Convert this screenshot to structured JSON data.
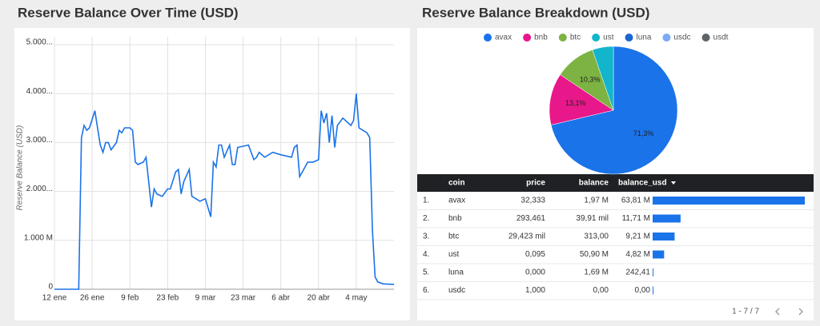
{
  "chart_data": [
    {
      "type": "line",
      "title": "Reserve Balance Over Time (USD)",
      "y_label": "Reserve Balance (USD)",
      "color": "#1a73e8",
      "grid": true,
      "x": [
        "01-12",
        "01-21",
        "01-22",
        "01-23",
        "01-24",
        "01-25",
        "01-27",
        "01-28",
        "01-29",
        "01-30",
        "01-31",
        "02-01",
        "02-02",
        "02-04",
        "02-05",
        "02-06",
        "02-07",
        "02-09",
        "02-10",
        "02-11",
        "02-12",
        "02-14",
        "02-15",
        "02-17",
        "02-18",
        "02-19",
        "02-21",
        "02-23",
        "02-24",
        "02-26",
        "02-27",
        "02-28",
        "03-01",
        "03-03",
        "03-04",
        "03-07",
        "03-09",
        "03-11",
        "03-12",
        "03-13",
        "03-14",
        "03-15",
        "03-16",
        "03-18",
        "03-19",
        "03-20",
        "03-21",
        "03-25",
        "03-27",
        "03-28",
        "03-29",
        "03-31",
        "04-03",
        "04-06",
        "04-10",
        "04-11",
        "04-12",
        "04-13",
        "04-16",
        "04-18",
        "04-20",
        "04-21",
        "04-22",
        "04-23",
        "04-24",
        "04-25",
        "04-26",
        "04-27",
        "04-29",
        "05-02",
        "05-03",
        "05-04",
        "05-05",
        "05-08",
        "05-09",
        "05-10",
        "05-11",
        "05-12",
        "05-14",
        "05-18"
      ],
      "values": [
        0,
        0,
        3100000000,
        3350000000,
        3250000000,
        3300000000,
        3650000000,
        3300000000,
        2950000000,
        2800000000,
        3000000000,
        3000000000,
        2850000000,
        3000000000,
        3250000000,
        3200000000,
        3300000000,
        3300000000,
        3250000000,
        2600000000,
        2550000000,
        2600000000,
        2700000000,
        1680000000,
        2050000000,
        1950000000,
        1900000000,
        2050000000,
        2050000000,
        2400000000,
        2450000000,
        1950000000,
        2200000000,
        2450000000,
        1900000000,
        1800000000,
        1850000000,
        1480000000,
        2600000000,
        2500000000,
        2950000000,
        2950000000,
        2700000000,
        2950000000,
        2550000000,
        2550000000,
        2900000000,
        2950000000,
        2650000000,
        2700000000,
        2800000000,
        2700000000,
        2800000000,
        2750000000,
        2700000000,
        2900000000,
        2950000000,
        2300000000,
        2600000000,
        2600000000,
        2650000000,
        3650000000,
        3400000000,
        3600000000,
        3000000000,
        3550000000,
        2900000000,
        3350000000,
        3500000000,
        3350000000,
        3450000000,
        4000000000,
        3300000000,
        3200000000,
        3100000000,
        1200000000,
        250000000,
        150000000,
        110000000,
        100000000
      ],
      "xlim": [
        "01-12",
        "05-18"
      ],
      "xticks": [
        {
          "value": "01-12",
          "label": "12 ene"
        },
        {
          "value": "01-26",
          "label": "26 ene"
        },
        {
          "value": "02-09",
          "label": "9 feb"
        },
        {
          "value": "02-23",
          "label": "23 feb"
        },
        {
          "value": "03-09",
          "label": "9 mar"
        },
        {
          "value": "03-23",
          "label": "23 mar"
        },
        {
          "value": "04-06",
          "label": "6 abr"
        },
        {
          "value": "04-20",
          "label": "20 abr"
        },
        {
          "value": "05-04",
          "label": "4 may"
        }
      ],
      "ylim": [
        0,
        5000000000
      ],
      "yticks": [
        0,
        {
          "value": 1000000000,
          "label": "1.000 M"
        },
        {
          "value": 2000000000,
          "label": "2.000..."
        },
        {
          "value": 3000000000,
          "label": "3.000..."
        },
        {
          "value": 4000000000,
          "label": "4.000..."
        },
        {
          "value": 5000000000,
          "label": "5.000..."
        }
      ]
    },
    {
      "type": "pie",
      "title": "Reserve Balance Breakdown (USD)",
      "categories": [
        "avax",
        "bnb",
        "btc",
        "ust",
        "luna",
        "usdc",
        "usdt"
      ],
      "values": [
        71.3,
        13.1,
        10.3,
        5.3,
        0,
        0,
        0
      ],
      "value_labels": [
        "71,3%",
        "13,1%",
        "10,3%",
        null,
        null,
        null,
        null
      ],
      "colors": [
        "#1a73e8",
        "#e8178a",
        "#7cb342",
        "#12b5cb",
        "#1967d2",
        "#7baaf7",
        "#5f6368"
      ]
    }
  ],
  "table": {
    "columns": [
      "coin",
      "price",
      "balance",
      "balance_usd"
    ],
    "rows": [
      [
        "1.",
        "avax",
        "32,333",
        "1,97 M",
        "63,81 M"
      ],
      [
        "2.",
        "bnb",
        "293,461",
        "39,91 mil",
        "11,71 M"
      ],
      [
        "3.",
        "btc",
        "29,423 mil",
        "313,00",
        "9,21 M"
      ],
      [
        "4.",
        "ust",
        "0,095",
        "50,90 M",
        "4,82 M"
      ],
      [
        "5.",
        "luna",
        "0,000",
        "1,69 M",
        "242,41"
      ],
      [
        "6.",
        "usdc",
        "1,000",
        "0,00",
        "0,00"
      ]
    ],
    "balance_usd_values": [
      63810000,
      11710000,
      9210000,
      4820000,
      242.41,
      0
    ],
    "bar_color": "#1a73e8",
    "pagination": "1 - 7 / 7"
  }
}
